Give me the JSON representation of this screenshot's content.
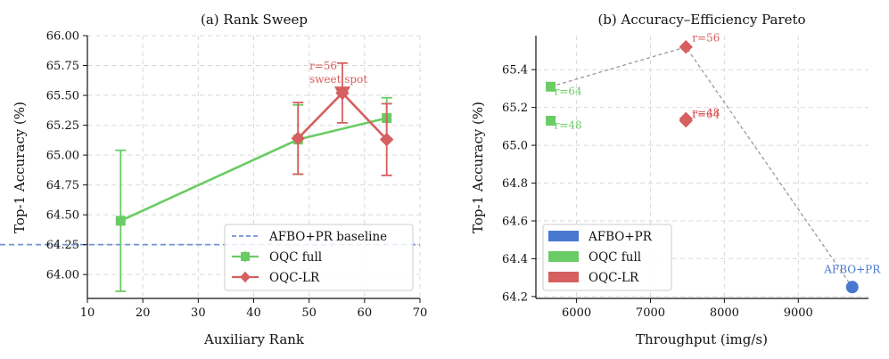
{
  "colors": {
    "green": "#6acc64",
    "red": "#d65f5f",
    "blue": "#4878d0",
    "blue_dashed": "#7093d6",
    "pareto": "#999999"
  },
  "chart_data": [
    {
      "type": "line",
      "title": "(a) Rank Sweep",
      "xlabel": "Auxiliary Rank",
      "ylabel": "Top-1 Accuracy (%)",
      "xlim": [
        10,
        70
      ],
      "ylim": [
        63.8,
        66.0
      ],
      "xticks": [
        10,
        20,
        30,
        40,
        50,
        60,
        70
      ],
      "yticks": [
        64.0,
        64.25,
        64.5,
        64.75,
        65.0,
        65.25,
        65.5,
        65.75,
        66.0
      ],
      "ytick_labels": [
        "64.00",
        "64.25",
        "64.50",
        "64.75",
        "65.00",
        "65.25",
        "65.50",
        "65.75",
        "66.00"
      ],
      "baseline": {
        "name": "AFBO+PR baseline",
        "value": 64.25
      },
      "series": [
        {
          "name": "OQC full",
          "color": "green",
          "marker": "square",
          "x": [
            16,
            48,
            64
          ],
          "y": [
            64.45,
            65.13,
            65.31
          ],
          "err": [
            0.59,
            0.29,
            0.17
          ]
        },
        {
          "name": "OQC-LR",
          "color": "red",
          "marker": "diamond",
          "x": [
            48,
            56,
            64
          ],
          "y": [
            65.14,
            65.52,
            65.13
          ],
          "err": [
            0.3,
            0.25,
            0.3
          ]
        }
      ],
      "annotation": {
        "lines": [
          "r=56",
          "sweet spot"
        ],
        "x": 56,
        "y": 65.52
      },
      "legend": {
        "position": "lower-right",
        "entries": [
          "AFBO+PR baseline",
          "OQC full",
          "OQC-LR"
        ]
      },
      "grid": true
    },
    {
      "type": "scatter",
      "title": "(b) Accuracy–Efficiency Pareto",
      "xlabel": "Throughput (img/s)",
      "ylabel": "Top-1 Accuracy (%)",
      "xlim": [
        5450,
        9950
      ],
      "ylim": [
        64.19,
        65.58
      ],
      "xticks": [
        6000,
        7000,
        8000,
        9000
      ],
      "yticks": [
        64.2,
        64.4,
        64.6,
        64.8,
        65.0,
        65.2,
        65.4
      ],
      "ytick_labels": [
        "64.2",
        "64.4",
        "64.6",
        "64.8",
        "65.0",
        "65.2",
        "65.4"
      ],
      "points": [
        {
          "series": "OQC full",
          "color": "green",
          "marker": "square",
          "x": 5650,
          "y": 65.31,
          "label": "r=64"
        },
        {
          "series": "OQC full",
          "color": "green",
          "marker": "square",
          "x": 5650,
          "y": 65.13,
          "label": "r=48"
        },
        {
          "series": "OQC-LR",
          "color": "red",
          "marker": "diamond",
          "x": 7480,
          "y": 65.52,
          "label": "r=56"
        },
        {
          "series": "OQC-LR",
          "color": "red",
          "marker": "diamond",
          "x": 7480,
          "y": 65.14,
          "label": "r=48"
        },
        {
          "series": "OQC-LR",
          "color": "red",
          "marker": "diamond",
          "x": 7480,
          "y": 65.13,
          "label": "r=64"
        },
        {
          "series": "AFBO+PR",
          "color": "blue",
          "marker": "circle",
          "x": 9730,
          "y": 64.25,
          "label": "AFBO+PR"
        }
      ],
      "pareto_front": [
        [
          5650,
          65.31
        ],
        [
          7480,
          65.52
        ],
        [
          9730,
          64.25
        ]
      ],
      "legend": {
        "position": "lower-left",
        "entries": [
          "AFBO+PR",
          "OQC full",
          "OQC-LR"
        ]
      },
      "grid": true
    }
  ]
}
